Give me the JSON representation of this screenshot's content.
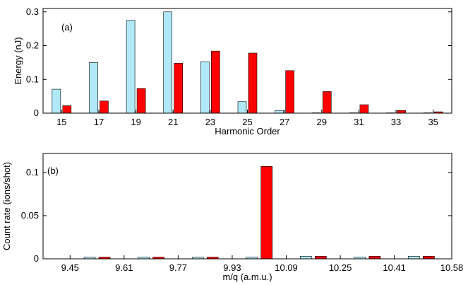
{
  "chart_data": [
    {
      "type": "bar",
      "panel_label": "(a)",
      "xlabel": "Harmonic Order",
      "ylabel": "Energy (nJ)",
      "categories": [
        "15",
        "17",
        "19",
        "21",
        "23",
        "25",
        "27",
        "29",
        "31",
        "33",
        "35"
      ],
      "ylim": [
        0,
        0.31
      ],
      "yticks": [
        "0",
        "0.1",
        "0.2",
        "0.3"
      ],
      "ytick_values": [
        0,
        0.1,
        0.2,
        0.3
      ],
      "series": [
        {
          "color": "#b0e8f8",
          "values": [
            0.071,
            0.15,
            0.275,
            0.3,
            0.152,
            0.034,
            0.008,
            0.001,
            0.001,
            0.001,
            0.001
          ]
        },
        {
          "color": "#ff0000",
          "values": [
            0.022,
            0.036,
            0.073,
            0.148,
            0.184,
            0.178,
            0.126,
            0.064,
            0.025,
            0.008,
            0.004
          ]
        }
      ],
      "grid": false
    },
    {
      "type": "bar",
      "panel_label": "(b)",
      "xlabel": "m/q (a.m.u.)",
      "ylabel": "Count rate (ions/shot)",
      "xticks": [
        "9.45",
        "9.61",
        "9.77",
        "9.93",
        "10.09",
        "10.25",
        "10.41",
        "10.58"
      ],
      "xtick_values": [
        9.45,
        9.61,
        9.77,
        9.93,
        10.09,
        10.25,
        10.41,
        10.58
      ],
      "xlim": [
        9.37,
        10.58
      ],
      "ylim": [
        0,
        0.122
      ],
      "yticks": [
        "0",
        "0.05",
        "0.1"
      ],
      "ytick_values": [
        0,
        0.05,
        0.1
      ],
      "x": [
        9.53,
        9.69,
        9.85,
        10.01,
        10.17,
        10.33,
        10.49
      ],
      "series": [
        {
          "color": "#b0e8f8",
          "values": [
            0.002,
            0.002,
            0.002,
            0.002,
            0.003,
            0.002,
            0.003
          ]
        },
        {
          "color": "#ff0000",
          "values": [
            0.002,
            0.002,
            0.002,
            0.107,
            0.003,
            0.003,
            0.003
          ]
        }
      ],
      "grid": false
    }
  ]
}
